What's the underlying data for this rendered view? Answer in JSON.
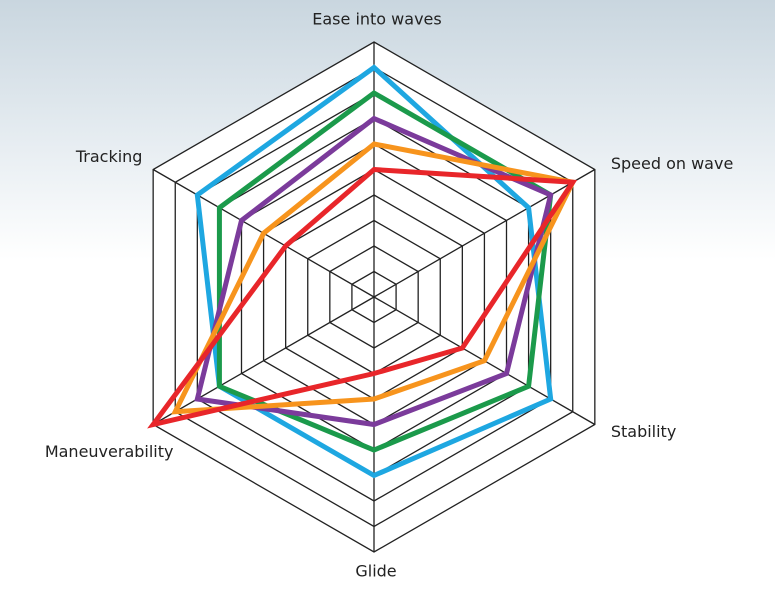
{
  "chart_data": {
    "type": "radar",
    "categories": [
      "Ease into waves",
      "Speed on wave",
      "Stability",
      "Glide",
      "Maneuverability",
      "Tracking"
    ],
    "rlim": [
      0,
      10
    ],
    "rticks": [
      1,
      2,
      3,
      4,
      5,
      6,
      7,
      8,
      9,
      10
    ],
    "grid": true,
    "series": [
      {
        "color": "#1ea7e1",
        "values": [
          9,
          7,
          8,
          7,
          7,
          8
        ]
      },
      {
        "color": "#1b9a4b",
        "values": [
          8,
          8,
          7,
          6,
          7,
          7
        ]
      },
      {
        "color": "#7b3b9b",
        "values": [
          7,
          8,
          6,
          5,
          8,
          6
        ]
      },
      {
        "color": "#f7941d",
        "values": [
          6,
          9,
          5,
          4,
          9,
          5
        ]
      },
      {
        "color": "#e8262a",
        "values": [
          5,
          9,
          4,
          3,
          10,
          4
        ]
      }
    ]
  }
}
